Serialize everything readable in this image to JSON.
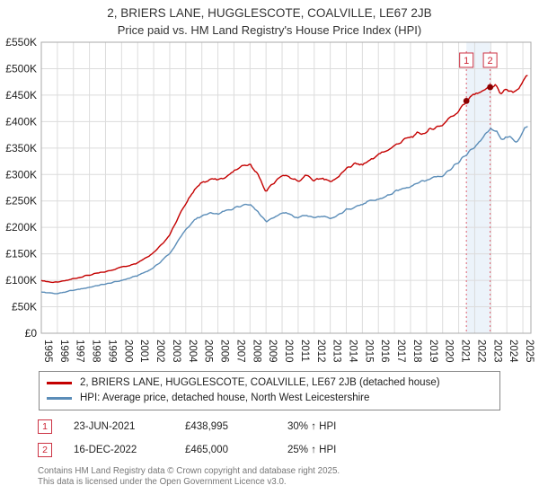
{
  "chart_data": {
    "type": "line",
    "title": "2, BRIERS LANE, HUGGLESCOTE, COALVILLE, LE67 2JB",
    "subtitle": "Price paid vs. HM Land Registry's House Price Index (HPI)",
    "x_min": 1995,
    "x_max": 2025.5,
    "y_min": 0,
    "y_max": 550000,
    "grid": true,
    "legend_position": "bottom",
    "x_ticks": [
      1995,
      1996,
      1997,
      1998,
      1999,
      2000,
      2001,
      2002,
      2003,
      2004,
      2005,
      2006,
      2007,
      2008,
      2009,
      2010,
      2011,
      2012,
      2013,
      2014,
      2015,
      2016,
      2017,
      2018,
      2019,
      2020,
      2021,
      2022,
      2023,
      2024,
      2025
    ],
    "y_ticks": [
      {
        "v": 0,
        "label": "£0"
      },
      {
        "v": 50000,
        "label": "£50K"
      },
      {
        "v": 100000,
        "label": "£100K"
      },
      {
        "v": 150000,
        "label": "£150K"
      },
      {
        "v": 200000,
        "label": "£200K"
      },
      {
        "v": 250000,
        "label": "£250K"
      },
      {
        "v": 300000,
        "label": "£300K"
      },
      {
        "v": 350000,
        "label": "£350K"
      },
      {
        "v": 400000,
        "label": "£400K"
      },
      {
        "v": 450000,
        "label": "£450K"
      },
      {
        "v": 500000,
        "label": "£500K"
      },
      {
        "v": 550000,
        "label": "£550K"
      }
    ],
    "series": [
      {
        "name": "2, BRIERS LANE, HUGGLESCOTE, COALVILLE, LE67 2JB (detached house)",
        "color": "#c40000",
        "points": [
          [
            1995.0,
            100000
          ],
          [
            1995.5,
            97000
          ],
          [
            1996.0,
            96000
          ],
          [
            1996.5,
            99000
          ],
          [
            1997.0,
            103000
          ],
          [
            1997.5,
            107000
          ],
          [
            1998.0,
            110000
          ],
          [
            1998.5,
            113000
          ],
          [
            1999.0,
            116000
          ],
          [
            1999.5,
            121000
          ],
          [
            2000.0,
            125000
          ],
          [
            2000.5,
            129000
          ],
          [
            2001.0,
            134000
          ],
          [
            2001.5,
            143000
          ],
          [
            2002.0,
            153000
          ],
          [
            2002.5,
            169000
          ],
          [
            2003.0,
            186000
          ],
          [
            2003.5,
            216000
          ],
          [
            2004.0,
            246000
          ],
          [
            2004.5,
            270000
          ],
          [
            2005.0,
            284000
          ],
          [
            2005.5,
            292000
          ],
          [
            2006.0,
            289000
          ],
          [
            2006.5,
            296000
          ],
          [
            2007.0,
            306000
          ],
          [
            2007.5,
            316000
          ],
          [
            2008.0,
            318000
          ],
          [
            2008.5,
            298000
          ],
          [
            2009.0,
            268000
          ],
          [
            2009.5,
            284000
          ],
          [
            2010.0,
            300000
          ],
          [
            2010.5,
            294000
          ],
          [
            2011.0,
            286000
          ],
          [
            2011.5,
            298000
          ],
          [
            2012.0,
            289000
          ],
          [
            2012.5,
            294000
          ],
          [
            2013.0,
            286000
          ],
          [
            2013.5,
            296000
          ],
          [
            2014.0,
            310000
          ],
          [
            2014.5,
            320000
          ],
          [
            2015.0,
            318000
          ],
          [
            2015.5,
            328000
          ],
          [
            2016.0,
            337000
          ],
          [
            2016.5,
            345000
          ],
          [
            2017.0,
            354000
          ],
          [
            2017.5,
            364000
          ],
          [
            2018.0,
            370000
          ],
          [
            2018.5,
            377000
          ],
          [
            2019.0,
            380000
          ],
          [
            2019.5,
            389000
          ],
          [
            2020.0,
            394000
          ],
          [
            2020.5,
            409000
          ],
          [
            2021.0,
            421000
          ],
          [
            2021.48,
            438995
          ],
          [
            2022.0,
            451000
          ],
          [
            2022.5,
            459000
          ],
          [
            2022.96,
            465000
          ],
          [
            2023.3,
            468000
          ],
          [
            2023.6,
            452000
          ],
          [
            2024.0,
            462000
          ],
          [
            2024.4,
            450000
          ],
          [
            2024.8,
            465000
          ],
          [
            2025.3,
            487000
          ]
        ]
      },
      {
        "name": "HPI: Average price, detached house, North West Leicestershire",
        "color": "#5b8db8",
        "points": [
          [
            1995.0,
            78000
          ],
          [
            1995.5,
            76000
          ],
          [
            1996.0,
            75000
          ],
          [
            1996.5,
            78000
          ],
          [
            1997.0,
            81000
          ],
          [
            1997.5,
            84000
          ],
          [
            1998.0,
            87000
          ],
          [
            1998.5,
            90000
          ],
          [
            1999.0,
            93000
          ],
          [
            1999.5,
            96000
          ],
          [
            2000.0,
            100000
          ],
          [
            2000.5,
            104000
          ],
          [
            2001.0,
            109000
          ],
          [
            2001.5,
            116000
          ],
          [
            2002.0,
            124000
          ],
          [
            2002.5,
            137000
          ],
          [
            2003.0,
            151000
          ],
          [
            2003.5,
            173000
          ],
          [
            2004.0,
            196000
          ],
          [
            2004.5,
            213000
          ],
          [
            2005.0,
            221000
          ],
          [
            2005.5,
            226000
          ],
          [
            2006.0,
            225000
          ],
          [
            2006.5,
            231000
          ],
          [
            2007.0,
            237000
          ],
          [
            2007.5,
            243000
          ],
          [
            2008.0,
            245000
          ],
          [
            2008.5,
            230000
          ],
          [
            2009.0,
            211000
          ],
          [
            2009.5,
            220000
          ],
          [
            2010.0,
            228000
          ],
          [
            2010.5,
            224000
          ],
          [
            2011.0,
            218000
          ],
          [
            2011.5,
            224000
          ],
          [
            2012.0,
            218000
          ],
          [
            2012.5,
            221000
          ],
          [
            2013.0,
            215000
          ],
          [
            2013.5,
            223000
          ],
          [
            2014.0,
            233000
          ],
          [
            2014.5,
            240000
          ],
          [
            2015.0,
            243000
          ],
          [
            2015.5,
            249000
          ],
          [
            2016.0,
            253000
          ],
          [
            2016.5,
            259000
          ],
          [
            2017.0,
            266000
          ],
          [
            2017.5,
            273000
          ],
          [
            2018.0,
            279000
          ],
          [
            2018.5,
            286000
          ],
          [
            2019.0,
            289000
          ],
          [
            2019.5,
            296000
          ],
          [
            2020.0,
            299000
          ],
          [
            2020.5,
            311000
          ],
          [
            2021.0,
            323000
          ],
          [
            2021.5,
            338000
          ],
          [
            2022.0,
            353000
          ],
          [
            2022.5,
            369000
          ],
          [
            2023.0,
            386000
          ],
          [
            2023.4,
            378000
          ],
          [
            2023.8,
            366000
          ],
          [
            2024.2,
            370000
          ],
          [
            2024.6,
            362000
          ],
          [
            2025.0,
            380000
          ],
          [
            2025.3,
            391000
          ]
        ]
      }
    ],
    "sale_markers": [
      {
        "label": "1",
        "x": 2021.48,
        "y": 438995
      },
      {
        "label": "2",
        "x": 2022.96,
        "y": 465000
      }
    ],
    "shaded_region": {
      "x1": 2021.48,
      "x2": 2022.96,
      "color": "#dce9f6"
    },
    "marker_accent_color": "#cc3344",
    "dot_color": "#8b0000"
  },
  "annotations": [
    {
      "num": "1",
      "date": "23-JUN-2021",
      "price": "£438,995",
      "hpi": "30% ↑ HPI"
    },
    {
      "num": "2",
      "date": "16-DEC-2022",
      "price": "£465,000",
      "hpi": "25% ↑ HPI"
    }
  ],
  "footer": {
    "line1": "Contains HM Land Registry data © Crown copyright and database right 2025.",
    "line2": "This data is licensed under the Open Government Licence v3.0."
  }
}
